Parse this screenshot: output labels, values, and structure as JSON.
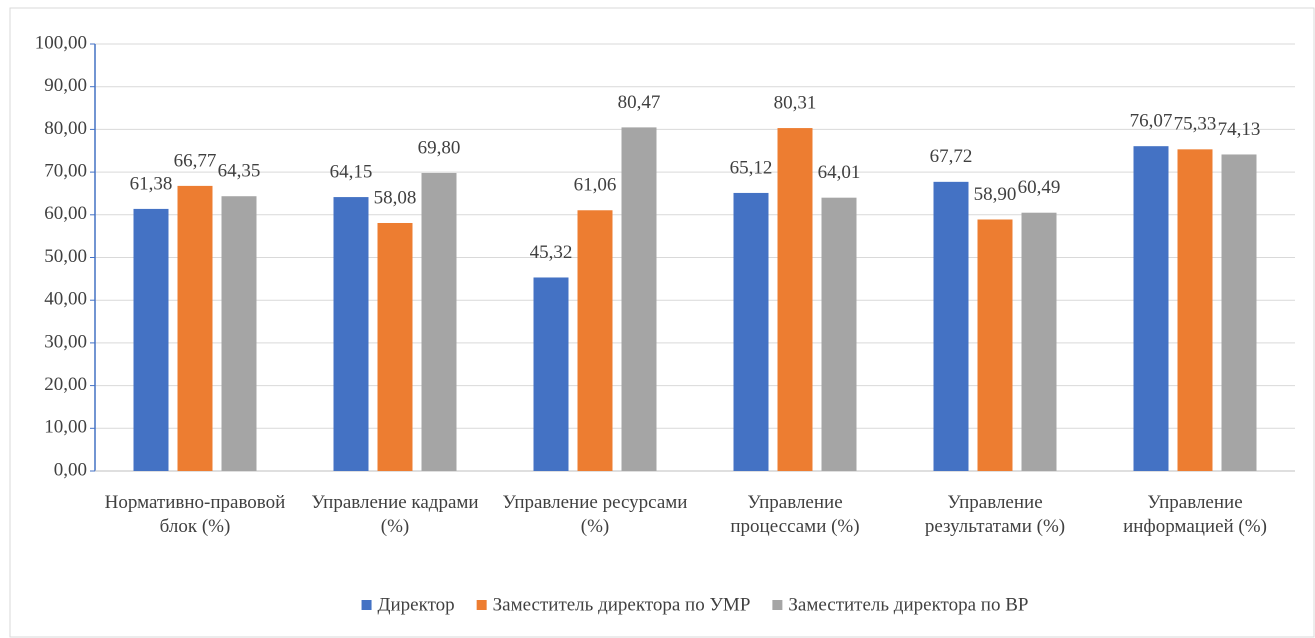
{
  "chart_data": {
    "type": "bar",
    "categories": [
      "Нормативно-правовой\nблок (%)",
      "Управление кадрами\n(%)",
      "Управление ресурсами\n(%)",
      "Управление\nпроцессами (%)",
      "Управление\nрезультатами (%)",
      "Управление\nинформацией (%)"
    ],
    "series": [
      {
        "name": "Директор",
        "color": "#4472c4",
        "values": [
          61.38,
          64.15,
          45.32,
          65.12,
          67.72,
          76.07
        ],
        "value_labels": [
          "61,38",
          "64,15",
          "45,32",
          "65,12",
          "67,72",
          "76,07"
        ]
      },
      {
        "name": "Заместитель директора по УМР",
        "color": "#ed7d31",
        "values": [
          66.77,
          58.08,
          61.06,
          80.31,
          58.9,
          75.33
        ],
        "value_labels": [
          "66,77",
          "58,08",
          "61,06",
          "80,31",
          "58,90",
          "75,33"
        ]
      },
      {
        "name": "Заместитель директора по ВР",
        "color": "#a5a5a5",
        "values": [
          64.35,
          69.8,
          80.47,
          64.01,
          60.49,
          74.13
        ],
        "value_labels": [
          "64,35",
          "69,80",
          "80,47",
          "64,01",
          "60,49",
          "74,13"
        ]
      }
    ],
    "ylim": [
      0,
      100
    ],
    "yticks": [
      {
        "value": 0,
        "label": "0,00"
      },
      {
        "value": 10,
        "label": "10,00"
      },
      {
        "value": 20,
        "label": "20,00"
      },
      {
        "value": 30,
        "label": "30,00"
      },
      {
        "value": 40,
        "label": "40,00"
      },
      {
        "value": 50,
        "label": "50,00"
      },
      {
        "value": 60,
        "label": "60,00"
      },
      {
        "value": 70,
        "label": "70,00"
      },
      {
        "value": 80,
        "label": "80,00"
      },
      {
        "value": 90,
        "label": "90,00"
      },
      {
        "value": 100,
        "label": "100,00"
      }
    ],
    "grid": true,
    "legend": "bottom"
  }
}
